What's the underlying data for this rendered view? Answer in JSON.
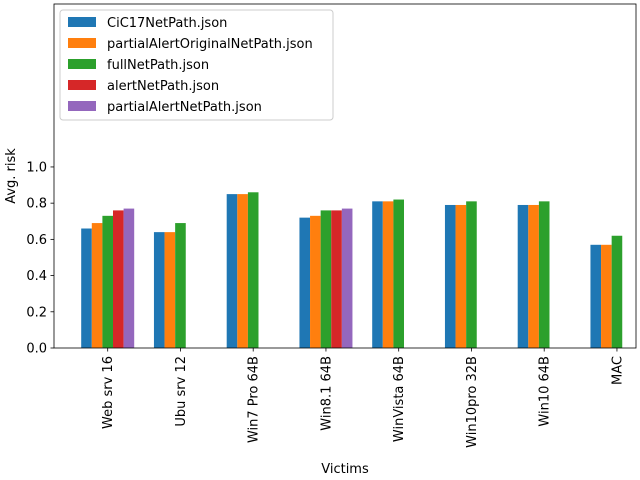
{
  "chart_data": {
    "type": "bar",
    "title": "",
    "xlabel": "Victims",
    "ylabel": "Avg. risk",
    "ylim": [
      0,
      1.9
    ],
    "yticks": [
      0.0,
      0.2,
      0.4,
      0.6,
      0.8,
      1.0
    ],
    "ytick_labels": [
      "0.0",
      "0.2",
      "0.4",
      "0.6",
      "0.8",
      "1.0"
    ],
    "categories": [
      "Web srv 16",
      "Ubu srv 12",
      "Win7 Pro 64B",
      "Win8.1 64B",
      "WinVista 64B",
      "Win10pro 32B",
      "Win10 64B",
      "MAC"
    ],
    "legend_position": "top-left",
    "grid": false,
    "series": [
      {
        "name": "CiC17NetPath.json",
        "color": "#1f77b4",
        "values": [
          0.66,
          0.64,
          0.85,
          0.72,
          0.81,
          0.79,
          0.79,
          0.57
        ]
      },
      {
        "name": "partialAlertOriginalNetPath.json",
        "color": "#ff7f0e",
        "values": [
          0.69,
          0.64,
          0.85,
          0.73,
          0.81,
          0.79,
          0.79,
          0.57
        ]
      },
      {
        "name": "fullNetPath.json",
        "color": "#2ca02c",
        "values": [
          0.73,
          0.69,
          0.86,
          0.76,
          0.82,
          0.81,
          0.81,
          0.62
        ]
      },
      {
        "name": "alertNetPath.json",
        "color": "#d62728",
        "values": [
          0.76,
          null,
          null,
          0.76,
          null,
          null,
          null,
          null
        ]
      },
      {
        "name": "partialAlertNetPath.json",
        "color": "#9467bd",
        "values": [
          0.77,
          null,
          null,
          0.77,
          null,
          null,
          null,
          null
        ]
      }
    ]
  }
}
